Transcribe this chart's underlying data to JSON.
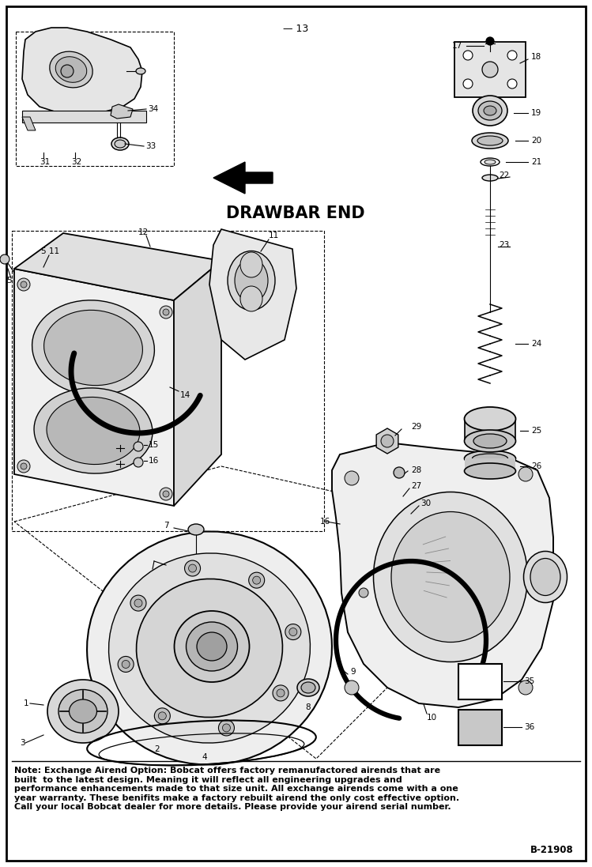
{
  "title_top": "— 13",
  "drawbar_label": "DRAWBAR END",
  "note_text": "Note: Exchange Airend Option: Bobcat offers factory remanufactored airends that are\nbuilt  to the latest design. Meaning it will reflect all engineering upgrades and\nperformance enhancements made to that size unit. All exchange airends come with a one\nyear warranty. These benifits make a factory rebuilt airend the only cost effective option.\nCall your local Bobcat dealer for more details. Please provide your airend serial number.",
  "code": "B-21908",
  "bg_color": "#ffffff",
  "border_color": "#000000",
  "text_color": "#000000",
  "label_fontsize": 7.5,
  "title_fontsize": 9,
  "drawbar_fontsize": 15,
  "note_fontsize": 8.0
}
